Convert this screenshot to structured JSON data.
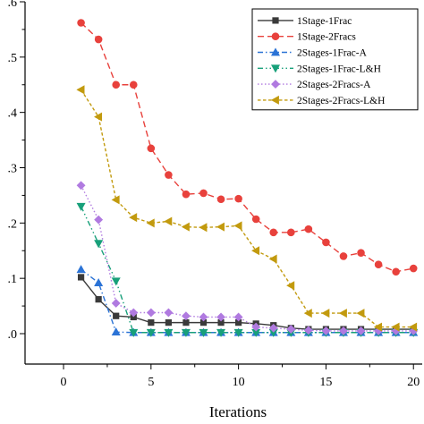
{
  "chart_data": {
    "type": "line",
    "title": "",
    "xlabel": "Iterations",
    "ylabel": "",
    "xlim": [
      -2.2,
      20.5
    ],
    "ylim": [
      -0.055,
      0.6
    ],
    "x_ticks": [
      0,
      5,
      10,
      15,
      20
    ],
    "x_tick_labels": [
      "0",
      "5",
      "10",
      "15",
      "20"
    ],
    "y_ticks": [
      0.0,
      0.1,
      0.2,
      0.3,
      0.4,
      0.5,
      0.6
    ],
    "y_tick_labels": [
      ".0",
      ".1",
      ".2",
      ".3",
      ".4",
      ".5",
      ".6"
    ],
    "grid": false,
    "legend_position": "top-right",
    "series": [
      {
        "name": "1Stage-1Frac",
        "color": "#3a3a3a",
        "dash": "solid",
        "marker": "square",
        "x": [
          1,
          2,
          3,
          4,
          5,
          6,
          7,
          8,
          9,
          10,
          11,
          12,
          13,
          14,
          15,
          16,
          17,
          18,
          19,
          20
        ],
        "y": [
          0.102,
          0.062,
          0.032,
          0.03,
          0.02,
          0.02,
          0.02,
          0.02,
          0.02,
          0.02,
          0.018,
          0.015,
          0.01,
          0.008,
          0.008,
          0.008,
          0.008,
          0.008,
          0.008,
          0.008
        ]
      },
      {
        "name": "1Stage-2Fracs",
        "color": "#e8413c",
        "dash": "long",
        "marker": "circle",
        "x": [
          1,
          2,
          3,
          4,
          5,
          6,
          7,
          8,
          9,
          10,
          11,
          12,
          13,
          14,
          15,
          16,
          17,
          18,
          19,
          20
        ],
        "y": [
          0.562,
          0.532,
          0.45,
          0.45,
          0.335,
          0.287,
          0.252,
          0.254,
          0.243,
          0.244,
          0.207,
          0.183,
          0.183,
          0.189,
          0.165,
          0.14,
          0.146,
          0.125,
          0.112,
          0.118
        ]
      },
      {
        "name": "2Stages-1Frac-A",
        "color": "#2b73d6",
        "dash": "dashdot",
        "marker": "triangle-up",
        "x": [
          1,
          2,
          3,
          4,
          5,
          6,
          7,
          8,
          9,
          10,
          11,
          12,
          13,
          14,
          15,
          16,
          17,
          18,
          19,
          20
        ],
        "y": [
          0.116,
          0.092,
          0.003,
          0.002,
          0.002,
          0.002,
          0.002,
          0.002,
          0.002,
          0.002,
          0.002,
          0.002,
          0.002,
          0.002,
          0.002,
          0.002,
          0.002,
          0.002,
          0.002,
          0.002
        ]
      },
      {
        "name": "2Stages-1Frac-L&H",
        "color": "#18a07a",
        "dash": "dashdotdot",
        "marker": "triangle-down",
        "x": [
          1,
          2,
          3,
          4,
          5,
          6,
          7,
          8,
          9,
          10,
          11,
          12,
          13,
          14,
          15,
          16,
          17,
          18,
          19,
          20
        ],
        "y": [
          0.23,
          0.163,
          0.095,
          0.002,
          0.002,
          0.002,
          0.002,
          0.002,
          0.002,
          0.002,
          0.002,
          0.002,
          0.002,
          0.002,
          0.002,
          0.002,
          0.002,
          0.002,
          0.002,
          0.002
        ]
      },
      {
        "name": "2Stages-2Fracs-A",
        "color": "#b07ae0",
        "dash": "dot",
        "marker": "diamond",
        "x": [
          1,
          2,
          3,
          4,
          5,
          6,
          7,
          8,
          9,
          10,
          11,
          12,
          13,
          14,
          15,
          16,
          17,
          18,
          19,
          20
        ],
        "y": [
          0.268,
          0.206,
          0.055,
          0.038,
          0.038,
          0.038,
          0.032,
          0.03,
          0.03,
          0.03,
          0.012,
          0.01,
          0.008,
          0.006,
          0.005,
          0.005,
          0.005,
          0.005,
          0.005,
          0.005
        ]
      },
      {
        "name": "2Stages-2Fracs-L&H",
        "color": "#c29a0e",
        "dash": "shortdash",
        "marker": "triangle-left",
        "x": [
          1,
          2,
          3,
          4,
          5,
          6,
          7,
          8,
          9,
          10,
          11,
          12,
          13,
          14,
          15,
          16,
          17,
          18,
          19,
          20
        ],
        "y": [
          0.441,
          0.392,
          0.242,
          0.21,
          0.2,
          0.203,
          0.193,
          0.192,
          0.193,
          0.195,
          0.15,
          0.135,
          0.087,
          0.037,
          0.037,
          0.037,
          0.037,
          0.012,
          0.012,
          0.012
        ]
      }
    ]
  }
}
